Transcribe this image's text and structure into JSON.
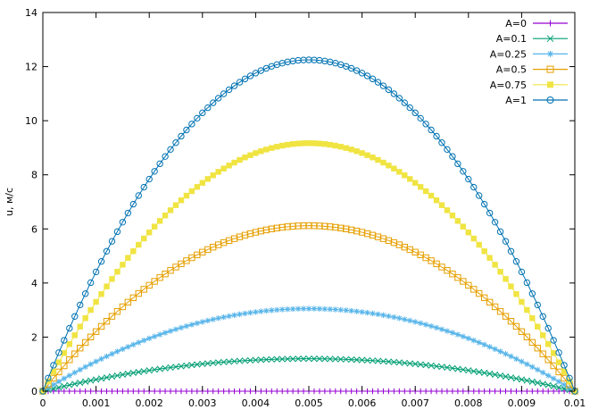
{
  "chart_data": {
    "type": "line",
    "title": "",
    "xlabel": "",
    "ylabel": "u, м/с",
    "xlim": [
      0,
      0.01
    ],
    "ylim": [
      0,
      14
    ],
    "xticks": [
      "0",
      "0.001",
      "0.002",
      "0.003",
      "0.004",
      "0.005",
      "0.006",
      "0.007",
      "0.008",
      "0.009",
      "0.01"
    ],
    "yticks": [
      "0",
      "2",
      "4",
      "6",
      "8",
      "10",
      "12",
      "14"
    ],
    "grid": false,
    "legend_position": "top-right",
    "curve_shape": "parabolic, zero at x=0 and x=0.01, peak at x=0.005",
    "sample_points_per_series": 101,
    "series": [
      {
        "name": "A=0",
        "peak_value": 0.0,
        "color": "#9400d3",
        "marker": "plus"
      },
      {
        "name": "A=0.1",
        "peak_value": 1.2,
        "color": "#009e73",
        "marker": "cross"
      },
      {
        "name": "A=0.25",
        "peak_value": 3.05,
        "color": "#56b4e9",
        "marker": "star"
      },
      {
        "name": "A=0.5",
        "peak_value": 6.12,
        "color": "#e69f00",
        "marker": "open-square"
      },
      {
        "name": "A=0.75",
        "peak_value": 9.17,
        "color": "#f0e442",
        "marker": "filled-square"
      },
      {
        "name": "A=1",
        "peak_value": 12.25,
        "color": "#0072b2",
        "marker": "open-circle"
      }
    ]
  }
}
